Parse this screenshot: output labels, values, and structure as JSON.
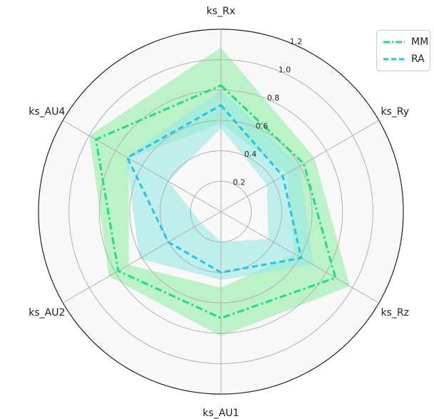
{
  "chart_data": {
    "type": "radar",
    "axes": [
      "ks_Rx",
      "ks_Ry",
      "ks_Rz",
      "ks_AU1",
      "ks_AU2",
      "ks_AU4"
    ],
    "rlim": [
      0,
      1.2
    ],
    "rticks": [
      0.2,
      0.4,
      0.6,
      0.8,
      1.0,
      1.2
    ],
    "rtick_labels": [
      "0.2",
      "0.4",
      "0.6",
      "0.8",
      "1.0",
      "1.2"
    ],
    "grid": true,
    "legend_position": "top-right",
    "series": [
      {
        "name": "MM",
        "color": "#22dd88",
        "linestyle": "dashdot",
        "values": [
          0.83,
          0.63,
          0.87,
          0.7,
          0.78,
          0.95
        ],
        "band_lower": [
          0.58,
          0.5,
          0.56,
          0.5,
          0.7,
          0.7
        ],
        "band_upper": [
          1.08,
          0.71,
          0.98,
          0.82,
          0.85,
          1.0
        ]
      },
      {
        "name": "RA",
        "color": "#22c4ea",
        "linestyle": "dashed",
        "values": [
          0.7,
          0.47,
          0.61,
          0.4,
          0.4,
          0.71
        ],
        "band_lower": [
          0.55,
          0.35,
          0.36,
          0.2,
          0.15,
          0.4
        ],
        "band_upper": [
          0.8,
          0.6,
          0.7,
          0.45,
          0.62,
          0.72
        ]
      }
    ],
    "band_colors": [
      "#95eea7",
      "#98e9e4"
    ]
  }
}
